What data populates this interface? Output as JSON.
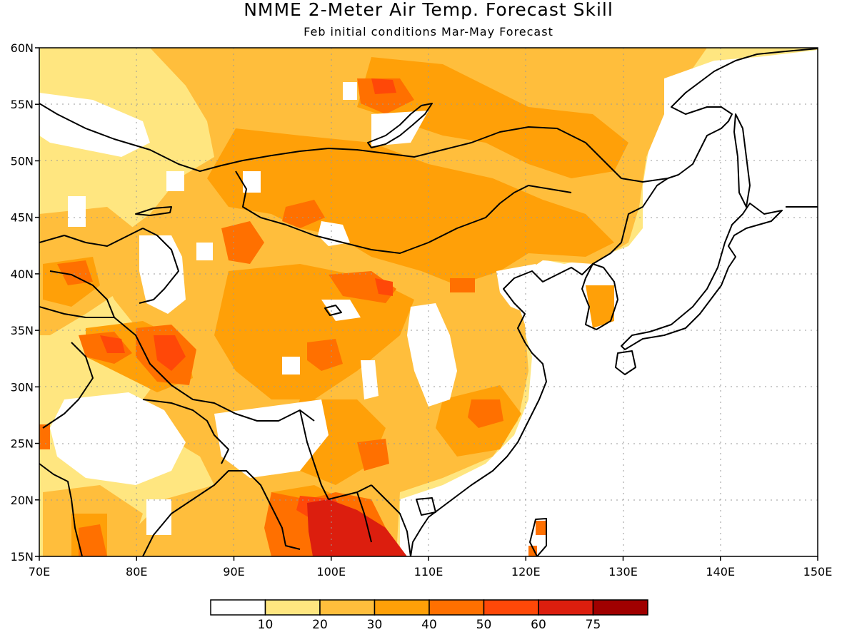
{
  "title": "NMME 2-Meter Air Temp. Forecast Skill",
  "subtitle": "Feb initial conditions  Mar-May Forecast",
  "map": {
    "lon_range": [
      70,
      150
    ],
    "lat_range": [
      15,
      60
    ],
    "lon_ticks": [
      {
        "value": 70,
        "label": "70E"
      },
      {
        "value": 80,
        "label": "80E"
      },
      {
        "value": 90,
        "label": "90E"
      },
      {
        "value": 100,
        "label": "100E"
      },
      {
        "value": 110,
        "label": "110E"
      },
      {
        "value": 120,
        "label": "120E"
      },
      {
        "value": 130,
        "label": "130E"
      },
      {
        "value": 140,
        "label": "140E"
      },
      {
        "value": 150,
        "label": "150E"
      }
    ],
    "lat_ticks": [
      {
        "value": 15,
        "label": "15N"
      },
      {
        "value": 20,
        "label": "20N"
      },
      {
        "value": 25,
        "label": "25N"
      },
      {
        "value": 30,
        "label": "30N"
      },
      {
        "value": 35,
        "label": "35N"
      },
      {
        "value": 40,
        "label": "40N"
      },
      {
        "value": 45,
        "label": "45N"
      },
      {
        "value": 50,
        "label": "50N"
      },
      {
        "value": 55,
        "label": "55N"
      },
      {
        "value": 60,
        "label": "60N"
      }
    ]
  },
  "legend": {
    "colors": [
      "#ffffff",
      "#ffe680",
      "#ffbe3c",
      "#ffa008",
      "#ff7000",
      "#ff4808",
      "#dc1e0e",
      "#a00000"
    ],
    "labels": [
      "10",
      "20",
      "30",
      "40",
      "50",
      "60",
      "75"
    ]
  }
}
